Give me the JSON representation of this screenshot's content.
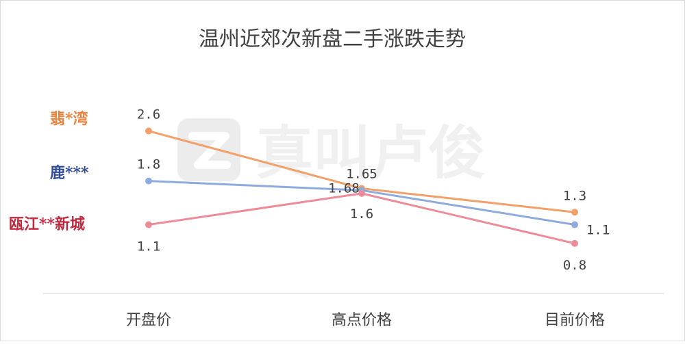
{
  "watermark": "真叫卢俊",
  "chart_data": {
    "type": "line",
    "title": "温州近郊次新盘二手涨跌走势",
    "categories": [
      "开盘价",
      "高点价格",
      "目前价格"
    ],
    "ylim": [
      0,
      3
    ],
    "grid": false,
    "legend": "left, labels beside each line",
    "series": [
      {
        "name": "翡*湾",
        "values": [
          2.6,
          1.68,
          1.3
        ],
        "color": "#F2A06A"
      },
      {
        "name": "鹿***",
        "values": [
          1.8,
          1.65,
          1.1
        ],
        "color": "#8FAADC"
      },
      {
        "name": "瓯江**新城",
        "values": [
          1.1,
          1.6,
          0.8
        ],
        "color": "#EC8C98"
      }
    ],
    "series_label_colors": [
      "#E8823C",
      "#2F4B9A",
      "#C0283D"
    ],
    "data_labels": [
      [
        "2.6",
        "1.68",
        "1.3"
      ],
      [
        "1.8",
        "1.65",
        "1.1"
      ],
      [
        "1.1",
        "1.6",
        "0.8"
      ]
    ]
  }
}
